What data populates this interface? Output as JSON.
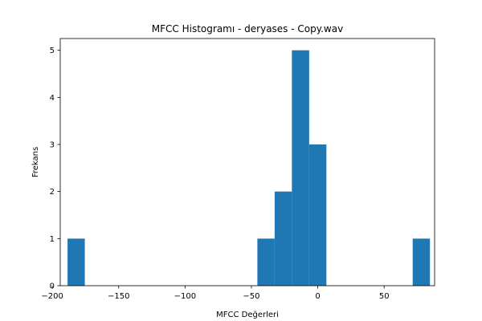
{
  "chart_data": {
    "type": "bar",
    "title": "MFCC Histogramı - deryases - Copy.wav",
    "xlabel": "MFCC Değerleri",
    "ylabel": "Frekans",
    "xlim": [
      -194,
      88
    ],
    "ylim": [
      0,
      5.25
    ],
    "grid": false,
    "legend": "none",
    "bar_color": "#1f77b4",
    "bins": [
      {
        "x0": -188.5,
        "x1": -175.5,
        "count": 1
      },
      {
        "x0": -175.5,
        "x1": -162.5,
        "count": 0
      },
      {
        "x0": -162.5,
        "x1": -149.5,
        "count": 0
      },
      {
        "x0": -149.5,
        "x1": -136.5,
        "count": 0
      },
      {
        "x0": -136.5,
        "x1": -123.5,
        "count": 0
      },
      {
        "x0": -123.5,
        "x1": -110.5,
        "count": 0
      },
      {
        "x0": -110.5,
        "x1": -97.5,
        "count": 0
      },
      {
        "x0": -97.5,
        "x1": -84.5,
        "count": 0
      },
      {
        "x0": -84.5,
        "x1": -71.5,
        "count": 0
      },
      {
        "x0": -71.5,
        "x1": -58.5,
        "count": 0
      },
      {
        "x0": -58.5,
        "x1": -45.5,
        "count": 0
      },
      {
        "x0": -45.5,
        "x1": -32.5,
        "count": 1
      },
      {
        "x0": -32.5,
        "x1": -19.5,
        "count": 2
      },
      {
        "x0": -19.5,
        "x1": -6.5,
        "count": 5
      },
      {
        "x0": -6.5,
        "x1": 6.5,
        "count": 3
      },
      {
        "x0": 6.5,
        "x1": 19.5,
        "count": 0
      },
      {
        "x0": 19.5,
        "x1": 32.5,
        "count": 0
      },
      {
        "x0": 32.5,
        "x1": 45.5,
        "count": 0
      },
      {
        "x0": 45.5,
        "x1": 58.5,
        "count": 0
      },
      {
        "x0": 58.5,
        "x1": 71.5,
        "count": 0
      },
      {
        "x0": 71.5,
        "x1": 84.5,
        "count": 1
      }
    ],
    "xticks": [
      {
        "value": -200,
        "label": "−200"
      },
      {
        "value": -150,
        "label": "−150"
      },
      {
        "value": -100,
        "label": "−100"
      },
      {
        "value": -50,
        "label": "−50"
      },
      {
        "value": 0,
        "label": "0"
      },
      {
        "value": 50,
        "label": "50"
      }
    ],
    "yticks": [
      {
        "value": 0,
        "label": "0"
      },
      {
        "value": 1,
        "label": "1"
      },
      {
        "value": 2,
        "label": "2"
      },
      {
        "value": 3,
        "label": "3"
      },
      {
        "value": 4,
        "label": "4"
      },
      {
        "value": 5,
        "label": "5"
      }
    ]
  }
}
